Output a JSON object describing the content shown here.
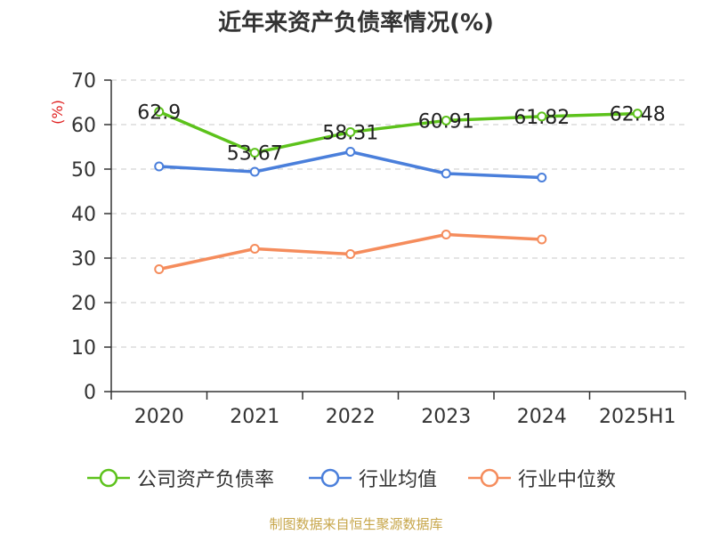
{
  "title": "近年来资产负债率情况(%)",
  "footer": "制图数据来自恒生聚源数据库",
  "chart_data": {
    "type": "line",
    "title": "近年来资产负债率情况(%)",
    "ylabel": "(%)",
    "xlabel": "",
    "categories": [
      "2020",
      "2021",
      "2022",
      "2023",
      "2024",
      "2025H1"
    ],
    "ylim": [
      0,
      70
    ],
    "yticks": [
      0,
      10,
      20,
      30,
      40,
      50,
      60,
      70
    ],
    "grid": "horizontal-dashed",
    "legend_position": "bottom",
    "series": [
      {
        "name": "公司资产负债率",
        "color": "#5cc21b",
        "values": [
          62.9,
          53.67,
          58.31,
          60.91,
          61.82,
          62.48
        ],
        "data_labels": [
          "62.9",
          "53.67",
          "58.31",
          "60.91",
          "61.82",
          "62.48"
        ]
      },
      {
        "name": "行业均值",
        "color": "#4a7fdb",
        "values": [
          50.6,
          49.4,
          53.9,
          49.0,
          48.1,
          null
        ]
      },
      {
        "name": "行业中位数",
        "color": "#f58c5c",
        "values": [
          27.5,
          32.1,
          30.9,
          35.3,
          34.2,
          null
        ]
      }
    ]
  }
}
